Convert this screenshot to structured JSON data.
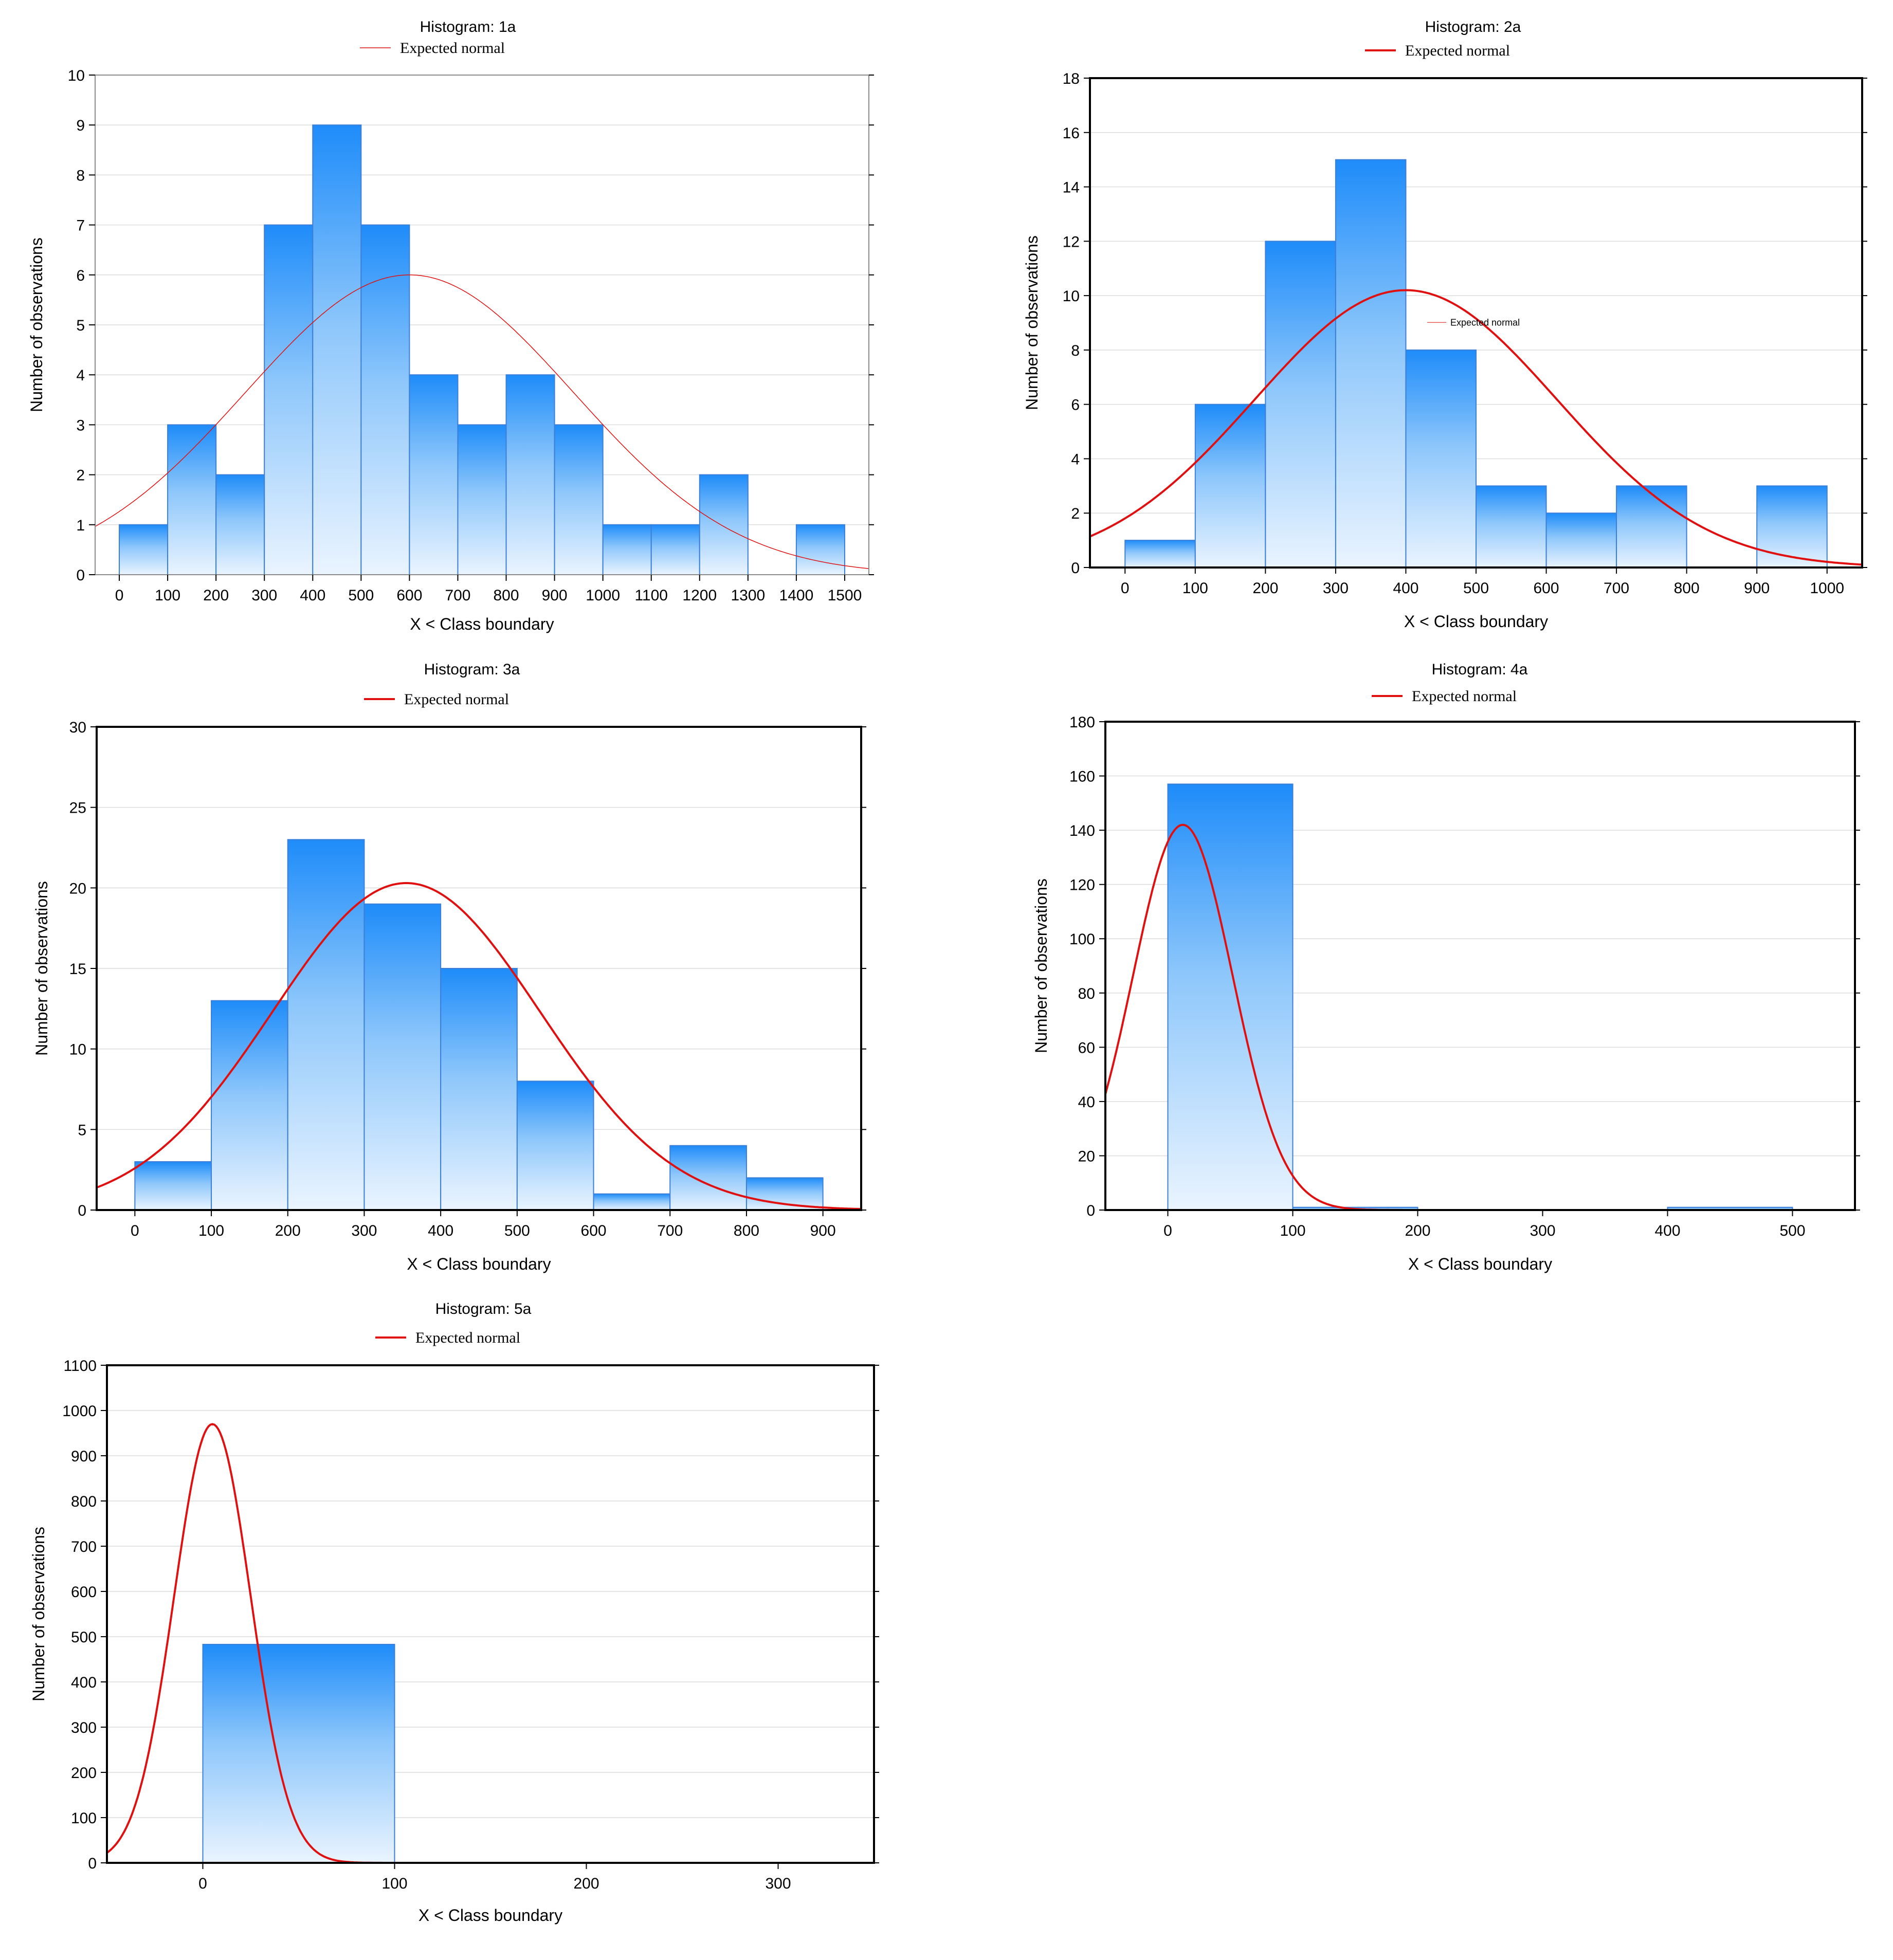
{
  "chart_data": [
    {
      "type": "bar",
      "title": "Histogram: 1a",
      "legend": "Expected normal",
      "xlabel": "X < Class boundary",
      "ylabel": "Number of observations",
      "x_ticks": [
        "0",
        "100",
        "200",
        "300",
        "400",
        "500",
        "600",
        "700",
        "800",
        "900",
        "1000",
        "1100",
        "1200",
        "1300",
        "1400",
        "1500"
      ],
      "y_ticks": [
        "0",
        "1",
        "2",
        "3",
        "4",
        "5",
        "6",
        "7",
        "8",
        "9",
        "10"
      ],
      "xlim": [
        -50,
        1550
      ],
      "ylim": [
        0,
        10
      ],
      "bins": [
        [
          0,
          100,
          1
        ],
        [
          100,
          200,
          3
        ],
        [
          200,
          300,
          2
        ],
        [
          300,
          400,
          7
        ],
        [
          400,
          500,
          9
        ],
        [
          500,
          600,
          7
        ],
        [
          600,
          700,
          4
        ],
        [
          700,
          800,
          3
        ],
        [
          800,
          900,
          4
        ],
        [
          900,
          1000,
          3
        ],
        [
          1000,
          1100,
          1
        ],
        [
          1100,
          1200,
          1
        ],
        [
          1200,
          1300,
          2
        ],
        [
          1300,
          1400,
          0
        ],
        [
          1400,
          1500,
          1
        ]
      ],
      "normal": {
        "peak": 6.0,
        "mean": 600,
        "sd": 340
      }
    },
    {
      "type": "bar",
      "title": "Histogram: 2a",
      "legend": "Expected normal",
      "xlabel": "X < Class boundary",
      "ylabel": "Number of observations",
      "x_ticks": [
        "0",
        "100",
        "200",
        "300",
        "400",
        "500",
        "600",
        "700",
        "800",
        "900",
        "1000"
      ],
      "y_ticks": [
        "0",
        "2",
        "4",
        "6",
        "8",
        "10",
        "12",
        "14",
        "16",
        "18"
      ],
      "xlim": [
        -50,
        1050
      ],
      "ylim": [
        0,
        18
      ],
      "bins": [
        [
          0,
          100,
          1
        ],
        [
          100,
          200,
          6
        ],
        [
          200,
          300,
          12
        ],
        [
          300,
          400,
          15
        ],
        [
          400,
          500,
          8
        ],
        [
          500,
          600,
          3
        ],
        [
          600,
          700,
          2
        ],
        [
          700,
          800,
          3
        ],
        [
          800,
          900,
          0
        ],
        [
          900,
          1000,
          3
        ]
      ],
      "normal": {
        "peak": 10.2,
        "mean": 400,
        "sd": 215
      },
      "inner_label": "Expected normal"
    },
    {
      "type": "bar",
      "title": "Histogram: 3a",
      "legend": "Expected normal",
      "xlabel": "X < Class boundary",
      "ylabel": "Number of observations",
      "x_ticks": [
        "0",
        "100",
        "200",
        "300",
        "400",
        "500",
        "600",
        "700",
        "800",
        "900"
      ],
      "y_ticks": [
        "0",
        "5",
        "10",
        "15",
        "20",
        "25",
        "30"
      ],
      "xlim": [
        -50,
        950
      ],
      "ylim": [
        0,
        30
      ],
      "bins": [
        [
          0,
          100,
          3
        ],
        [
          100,
          200,
          13
        ],
        [
          200,
          300,
          23
        ],
        [
          300,
          400,
          19
        ],
        [
          400,
          500,
          15
        ],
        [
          500,
          600,
          8
        ],
        [
          600,
          700,
          1
        ],
        [
          700,
          800,
          4
        ],
        [
          800,
          900,
          2
        ]
      ],
      "normal": {
        "peak": 20.3,
        "mean": 355,
        "sd": 175
      }
    },
    {
      "type": "bar",
      "title": "Histogram: 4a",
      "legend": "Expected normal",
      "xlabel": "X < Class boundary",
      "ylabel": "Number of observations",
      "x_ticks": [
        "0",
        "100",
        "200",
        "300",
        "400",
        "500"
      ],
      "y_ticks": [
        "0",
        "20",
        "40",
        "60",
        "80",
        "100",
        "120",
        "140",
        "160",
        "180"
      ],
      "xlim": [
        -50,
        550
      ],
      "ylim": [
        0,
        180
      ],
      "bins": [
        [
          0,
          100,
          157
        ],
        [
          100,
          200,
          1
        ],
        [
          200,
          300,
          0
        ],
        [
          300,
          400,
          0
        ],
        [
          400,
          500,
          1
        ]
      ],
      "normal": {
        "peak": 142,
        "mean": 12,
        "sd": 40
      }
    },
    {
      "type": "bar",
      "title": "Histogram: 5a",
      "legend": "Expected normal",
      "xlabel": "X < Class boundary",
      "ylabel": "Number of observations",
      "x_ticks": [
        "0",
        "100",
        "200",
        "300"
      ],
      "y_ticks": [
        "0",
        "100",
        "200",
        "300",
        "400",
        "500",
        "600",
        "700",
        "800",
        "900",
        "1000",
        "1100"
      ],
      "xlim": [
        -50,
        350
      ],
      "ylim": [
        0,
        1100
      ],
      "bins": [
        [
          0,
          100,
          483
        ]
      ],
      "normal": {
        "peak": 970,
        "mean": 5,
        "sd": 20
      }
    }
  ]
}
